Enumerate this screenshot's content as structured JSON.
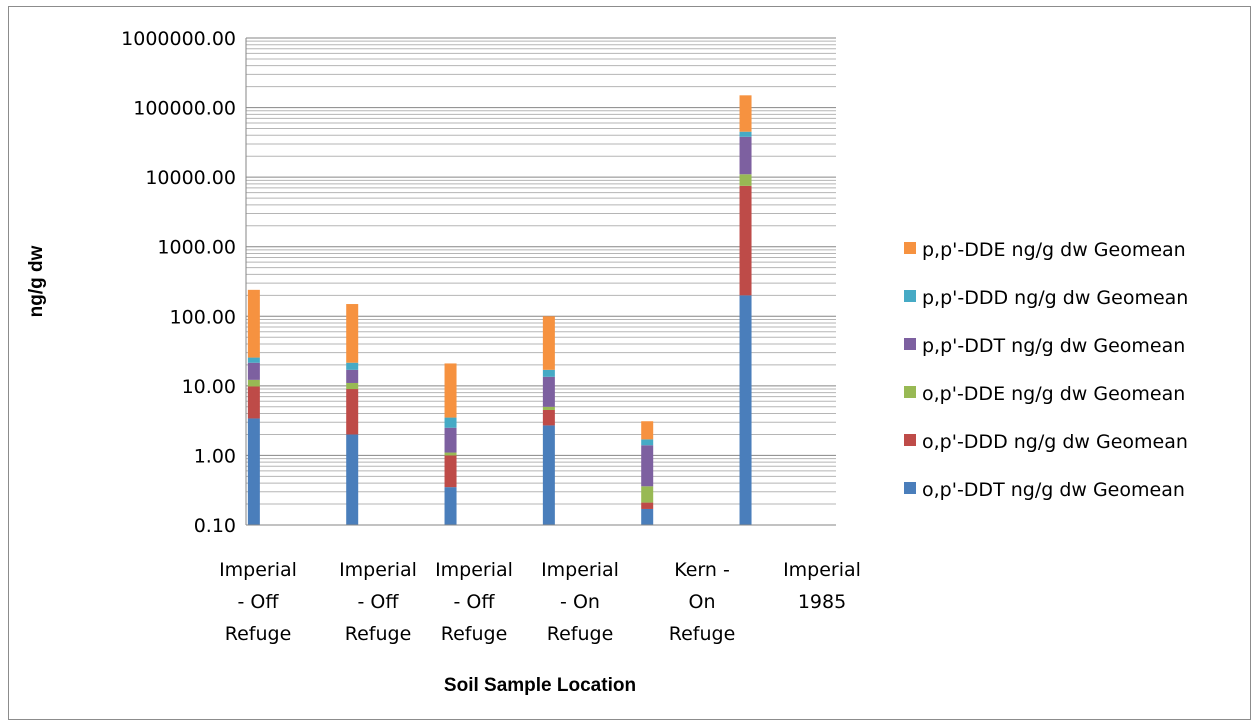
{
  "chart_data": {
    "type": "bar",
    "stacked": true,
    "yscale": "log",
    "ylim": [
      0.1,
      1000000
    ],
    "ylabel": "ng/g dw",
    "xlabel": "Soil Sample Location",
    "yticks": [
      "0.10",
      "1.00",
      "10.00",
      "100.00",
      "1000.00",
      "10000.00",
      "100000.00",
      "1000000.00"
    ],
    "categories": [
      [
        "Imperial",
        "- Off",
        "Refuge"
      ],
      [
        "Imperial",
        "- Off",
        "Refuge"
      ],
      [
        "Imperial",
        "- Off",
        "Refuge"
      ],
      [
        "Imperial",
        "- On",
        "Refuge"
      ],
      [
        "Kern -",
        "On",
        "Refuge"
      ],
      [
        "Imperial",
        "1985"
      ]
    ],
    "cumulative_tops": [
      [
        3.4,
        9.8,
        12.2,
        21.5,
        25.5,
        240
      ],
      [
        2.0,
        9.0,
        11.0,
        17.0,
        21.5,
        150
      ],
      [
        0.35,
        1.0,
        1.1,
        2.5,
        3.5,
        21
      ],
      [
        2.7,
        4.5,
        5.0,
        13.5,
        17.0,
        100
      ],
      [
        0.17,
        0.21,
        0.36,
        1.4,
        1.7,
        3.1
      ],
      [
        200,
        7500,
        11000,
        38000,
        45000,
        150000
      ]
    ],
    "series": [
      {
        "name": "o,p'-DDT ng/g dw Geomean",
        "color": "#4a7ebb"
      },
      {
        "name": "o,p'-DDD ng/g dw Geomean",
        "color": "#be4b48"
      },
      {
        "name": "o,p'-DDE ng/g dw Geomean",
        "color": "#98b954"
      },
      {
        "name": "p,p'-DDT ng/g dw Geomean",
        "color": "#7d60a0"
      },
      {
        "name": "p,p'-DDD ng/g dw Geomean",
        "color": "#46aac5"
      },
      {
        "name": "p,p'-DDE ng/g dw Geomean",
        "color": "#f69240"
      }
    ],
    "legend_position": "right",
    "grid": true
  }
}
